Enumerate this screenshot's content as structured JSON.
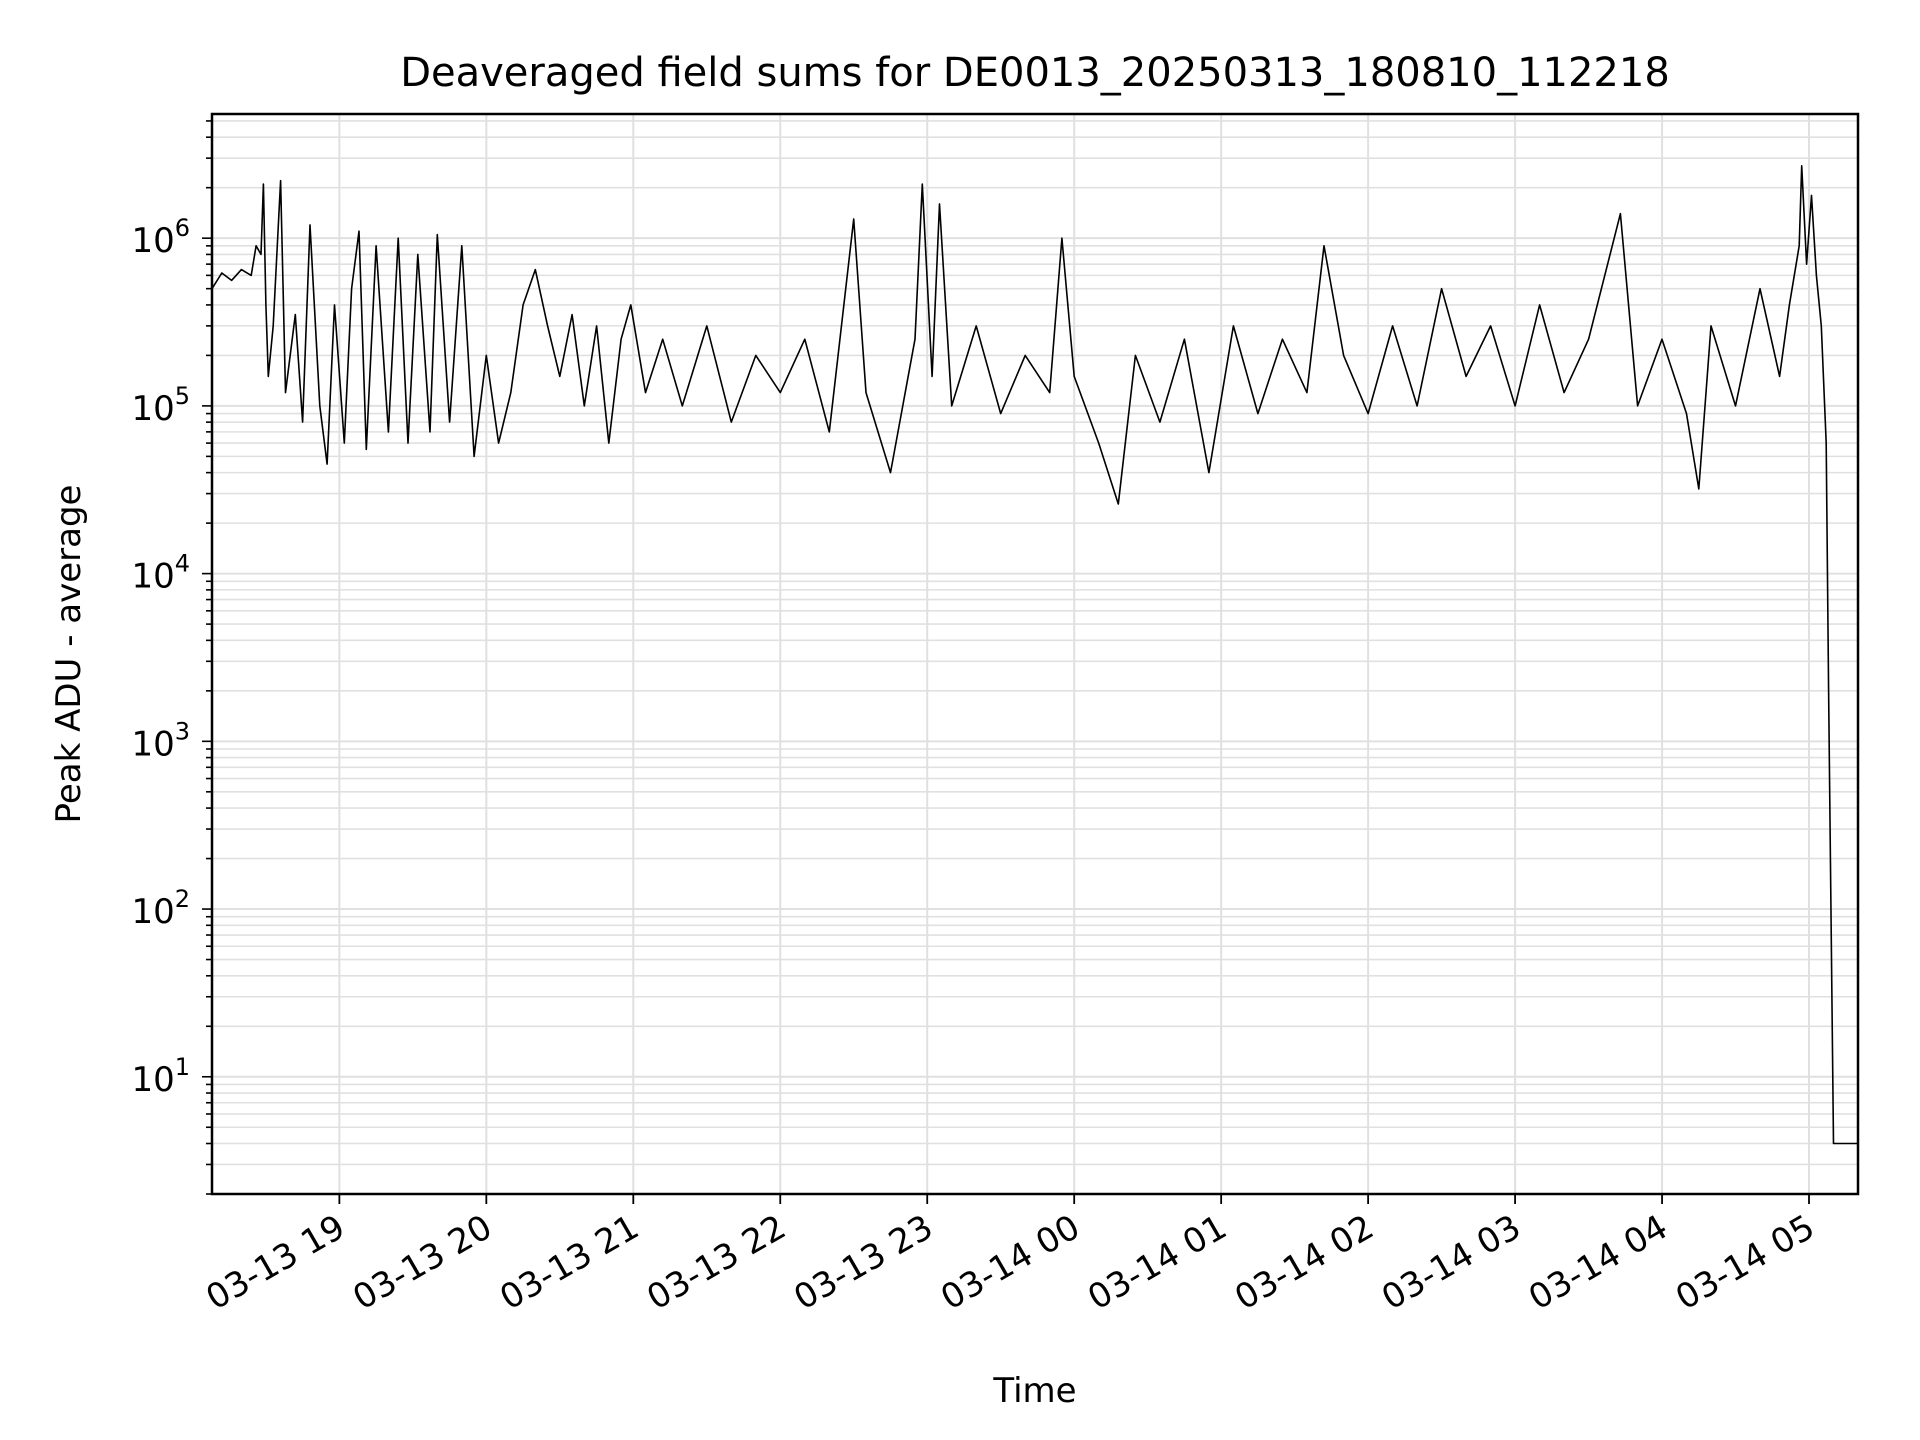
{
  "chart_data": {
    "type": "line",
    "title": "Deaveraged field sums for DE0013_20250313_180810_112218",
    "xlabel": "Time",
    "ylabel": "Peak ADU - average",
    "yscale": "log",
    "ylim": [
      2,
      5500000
    ],
    "xlim": [
      "2025-03-13 18:08",
      "2025-03-14 05:20"
    ],
    "grid": true,
    "line_color": "#000000",
    "grid_color": "#e0e0e0",
    "x_ticks": [
      {
        "value": "2025-03-13 19:00",
        "label": "03-13 19"
      },
      {
        "value": "2025-03-13 20:00",
        "label": "03-13 20"
      },
      {
        "value": "2025-03-13 21:00",
        "label": "03-13 21"
      },
      {
        "value": "2025-03-13 22:00",
        "label": "03-13 22"
      },
      {
        "value": "2025-03-13 23:00",
        "label": "03-13 23"
      },
      {
        "value": "2025-03-14 00:00",
        "label": "03-14 00"
      },
      {
        "value": "2025-03-14 01:00",
        "label": "03-14 01"
      },
      {
        "value": "2025-03-14 02:00",
        "label": "03-14 02"
      },
      {
        "value": "2025-03-14 03:00",
        "label": "03-14 03"
      },
      {
        "value": "2025-03-14 04:00",
        "label": "03-14 04"
      },
      {
        "value": "2025-03-14 05:00",
        "label": "03-14 05"
      }
    ],
    "y_ticks": [
      {
        "value": 10,
        "base": "10",
        "exp": "1"
      },
      {
        "value": 100,
        "base": "10",
        "exp": "2"
      },
      {
        "value": 1000,
        "base": "10",
        "exp": "3"
      },
      {
        "value": 10000,
        "base": "10",
        "exp": "4"
      },
      {
        "value": 100000,
        "base": "10",
        "exp": "5"
      },
      {
        "value": 1000000,
        "base": "10",
        "exp": "6"
      }
    ],
    "series": [
      {
        "points": [
          [
            "2025-03-13 18:08",
            500000
          ],
          [
            "2025-03-13 18:12",
            620000
          ],
          [
            "2025-03-13 18:16",
            560000
          ],
          [
            "2025-03-13 18:20",
            650000
          ],
          [
            "2025-03-13 18:24",
            600000
          ],
          [
            "2025-03-13 18:26",
            900000
          ],
          [
            "2025-03-13 18:28",
            800000
          ],
          [
            "2025-03-13 18:29",
            2100000
          ],
          [
            "2025-03-13 18:30",
            400000
          ],
          [
            "2025-03-13 18:31",
            150000
          ],
          [
            "2025-03-13 18:33",
            300000
          ],
          [
            "2025-03-13 18:36",
            2200000
          ],
          [
            "2025-03-13 18:38",
            120000
          ],
          [
            "2025-03-13 18:42",
            350000
          ],
          [
            "2025-03-13 18:45",
            80000
          ],
          [
            "2025-03-13 18:48",
            1200000
          ],
          [
            "2025-03-13 18:52",
            100000
          ],
          [
            "2025-03-13 18:55",
            45000
          ],
          [
            "2025-03-13 18:58",
            400000
          ],
          [
            "2025-03-13 19:02",
            60000
          ],
          [
            "2025-03-13 19:05",
            500000
          ],
          [
            "2025-03-13 19:08",
            1100000
          ],
          [
            "2025-03-13 19:11",
            55000
          ],
          [
            "2025-03-13 19:15",
            900000
          ],
          [
            "2025-03-13 19:20",
            70000
          ],
          [
            "2025-03-13 19:24",
            1000000
          ],
          [
            "2025-03-13 19:28",
            60000
          ],
          [
            "2025-03-13 19:32",
            800000
          ],
          [
            "2025-03-13 19:37",
            70000
          ],
          [
            "2025-03-13 19:40",
            1050000
          ],
          [
            "2025-03-13 19:45",
            80000
          ],
          [
            "2025-03-13 19:50",
            900000
          ],
          [
            "2025-03-13 19:55",
            50000
          ],
          [
            "2025-03-13 20:00",
            200000
          ],
          [
            "2025-03-13 20:05",
            60000
          ],
          [
            "2025-03-13 20:10",
            120000
          ],
          [
            "2025-03-13 20:15",
            400000
          ],
          [
            "2025-03-13 20:20",
            650000
          ],
          [
            "2025-03-13 20:25",
            300000
          ],
          [
            "2025-03-13 20:30",
            150000
          ],
          [
            "2025-03-13 20:35",
            350000
          ],
          [
            "2025-03-13 20:40",
            100000
          ],
          [
            "2025-03-13 20:45",
            300000
          ],
          [
            "2025-03-13 20:50",
            60000
          ],
          [
            "2025-03-13 20:55",
            250000
          ],
          [
            "2025-03-13 20:59",
            400000
          ],
          [
            "2025-03-13 21:05",
            120000
          ],
          [
            "2025-03-13 21:12",
            250000
          ],
          [
            "2025-03-13 21:20",
            100000
          ],
          [
            "2025-03-13 21:30",
            300000
          ],
          [
            "2025-03-13 21:40",
            80000
          ],
          [
            "2025-03-13 21:50",
            200000
          ],
          [
            "2025-03-13 22:00",
            120000
          ],
          [
            "2025-03-13 22:10",
            250000
          ],
          [
            "2025-03-13 22:20",
            70000
          ],
          [
            "2025-03-13 22:30",
            1300000
          ],
          [
            "2025-03-13 22:35",
            120000
          ],
          [
            "2025-03-13 22:45",
            40000
          ],
          [
            "2025-03-13 22:55",
            250000
          ],
          [
            "2025-03-13 22:58",
            2100000
          ],
          [
            "2025-03-13 23:02",
            150000
          ],
          [
            "2025-03-13 23:05",
            1600000
          ],
          [
            "2025-03-13 23:10",
            100000
          ],
          [
            "2025-03-13 23:20",
            300000
          ],
          [
            "2025-03-13 23:30",
            90000
          ],
          [
            "2025-03-13 23:40",
            200000
          ],
          [
            "2025-03-13 23:50",
            120000
          ],
          [
            "2025-03-13 23:55",
            1000000
          ],
          [
            "2025-03-14 00:00",
            150000
          ],
          [
            "2025-03-14 00:10",
            60000
          ],
          [
            "2025-03-14 00:18",
            26000
          ],
          [
            "2025-03-14 00:25",
            200000
          ],
          [
            "2025-03-14 00:35",
            80000
          ],
          [
            "2025-03-14 00:45",
            250000
          ],
          [
            "2025-03-14 00:55",
            40000
          ],
          [
            "2025-03-14 01:05",
            300000
          ],
          [
            "2025-03-14 01:15",
            90000
          ],
          [
            "2025-03-14 01:25",
            250000
          ],
          [
            "2025-03-14 01:35",
            120000
          ],
          [
            "2025-03-14 01:42",
            900000
          ],
          [
            "2025-03-14 01:50",
            200000
          ],
          [
            "2025-03-14 02:00",
            90000
          ],
          [
            "2025-03-14 02:10",
            300000
          ],
          [
            "2025-03-14 02:20",
            100000
          ],
          [
            "2025-03-14 02:30",
            500000
          ],
          [
            "2025-03-14 02:40",
            150000
          ],
          [
            "2025-03-14 02:50",
            300000
          ],
          [
            "2025-03-14 03:00",
            100000
          ],
          [
            "2025-03-14 03:10",
            400000
          ],
          [
            "2025-03-14 03:20",
            120000
          ],
          [
            "2025-03-14 03:30",
            250000
          ],
          [
            "2025-03-14 03:43",
            1400000
          ],
          [
            "2025-03-14 03:50",
            100000
          ],
          [
            "2025-03-14 04:00",
            250000
          ],
          [
            "2025-03-14 04:10",
            90000
          ],
          [
            "2025-03-14 04:15",
            32000
          ],
          [
            "2025-03-14 04:20",
            300000
          ],
          [
            "2025-03-14 04:30",
            100000
          ],
          [
            "2025-03-14 04:40",
            500000
          ],
          [
            "2025-03-14 04:48",
            150000
          ],
          [
            "2025-03-14 04:52",
            400000
          ],
          [
            "2025-03-14 04:56",
            900000
          ],
          [
            "2025-03-14 04:57",
            2700000
          ],
          [
            "2025-03-14 04:59",
            700000
          ],
          [
            "2025-03-14 05:01",
            1800000
          ],
          [
            "2025-03-14 05:03",
            600000
          ],
          [
            "2025-03-14 05:05",
            300000
          ],
          [
            "2025-03-14 05:07",
            60000
          ],
          [
            "2025-03-14 05:08",
            2000
          ],
          [
            "2025-03-14 05:10",
            4
          ],
          [
            "2025-03-14 05:20",
            4
          ]
        ]
      }
    ]
  }
}
